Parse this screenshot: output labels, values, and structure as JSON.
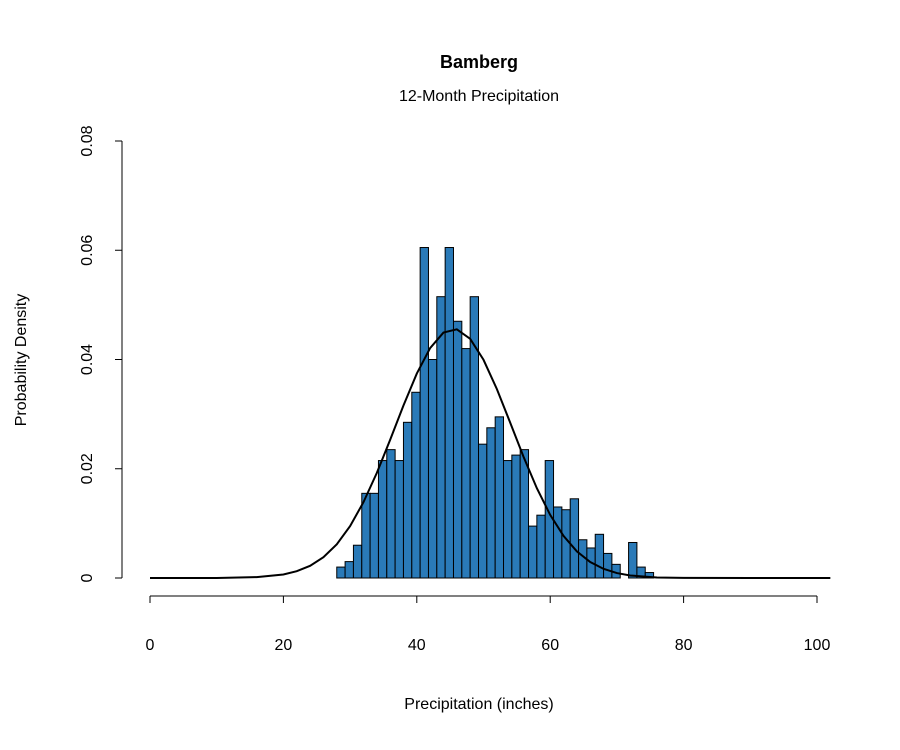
{
  "chart_data": {
    "type": "histogram",
    "title": "Bamberg",
    "subtitle": "12-Month Precipitation",
    "x_label": "Precipitation (inches)",
    "y_label": "Probability Density",
    "bins": [
      28,
      29.25,
      30.5,
      31.75,
      33,
      34.25,
      35.5,
      36.75,
      38,
      39.25,
      40.5,
      41.75,
      43,
      44.25,
      45.5,
      46.75,
      48,
      49.25,
      50.5,
      51.75,
      53,
      54.25,
      55.5,
      56.75,
      58,
      59.25,
      60.5,
      61.75,
      63,
      64.25,
      65.5,
      66.75,
      68,
      69.25,
      70.5,
      71.75,
      73,
      74.25,
      75.5
    ],
    "values": [
      0.002,
      0.003,
      0.006,
      0.0155,
      0.0155,
      0.0215,
      0.0235,
      0.0215,
      0.0285,
      0.034,
      0.0605,
      0.04,
      0.0515,
      0.0605,
      0.047,
      0.042,
      0.0515,
      0.0245,
      0.0275,
      0.0295,
      0.0215,
      0.0225,
      0.0235,
      0.0095,
      0.0115,
      0.0215,
      0.013,
      0.0125,
      0.0145,
      0.007,
      0.0055,
      0.008,
      0.0045,
      0.0025,
      0,
      0.0065,
      0.002,
      0.001
    ],
    "color": "#2a7ab8",
    "curve": {
      "color": "#000000",
      "x": [
        0,
        10,
        16,
        20,
        22,
        24,
        26,
        28,
        30,
        32,
        34,
        36,
        38,
        40,
        42,
        44,
        46,
        48,
        50,
        52,
        54,
        56,
        58,
        60,
        62,
        64,
        66,
        68,
        70,
        72,
        76,
        80,
        90,
        102
      ],
      "values": [
        0,
        0,
        0.00016,
        0.00065,
        0.00124,
        0.00223,
        0.0038,
        0.00617,
        0.0095,
        0.01387,
        0.01922,
        0.02529,
        0.03158,
        0.03742,
        0.04209,
        0.04493,
        0.04553,
        0.04378,
        0.03995,
        0.0346,
        0.02845,
        0.02219,
        0.01643,
        0.01155,
        0.0077,
        0.00487,
        0.00293,
        0.00167,
        0.0009,
        0.00046,
        0.0001,
        2e-05,
        0,
        0
      ]
    },
    "xlim": [
      0,
      100
    ],
    "xticks": [
      0,
      20,
      40,
      60,
      80,
      100
    ],
    "ylim": [
      0,
      0.08
    ],
    "yticks": [
      0,
      0.02,
      0.04,
      0.06,
      0.08
    ]
  }
}
